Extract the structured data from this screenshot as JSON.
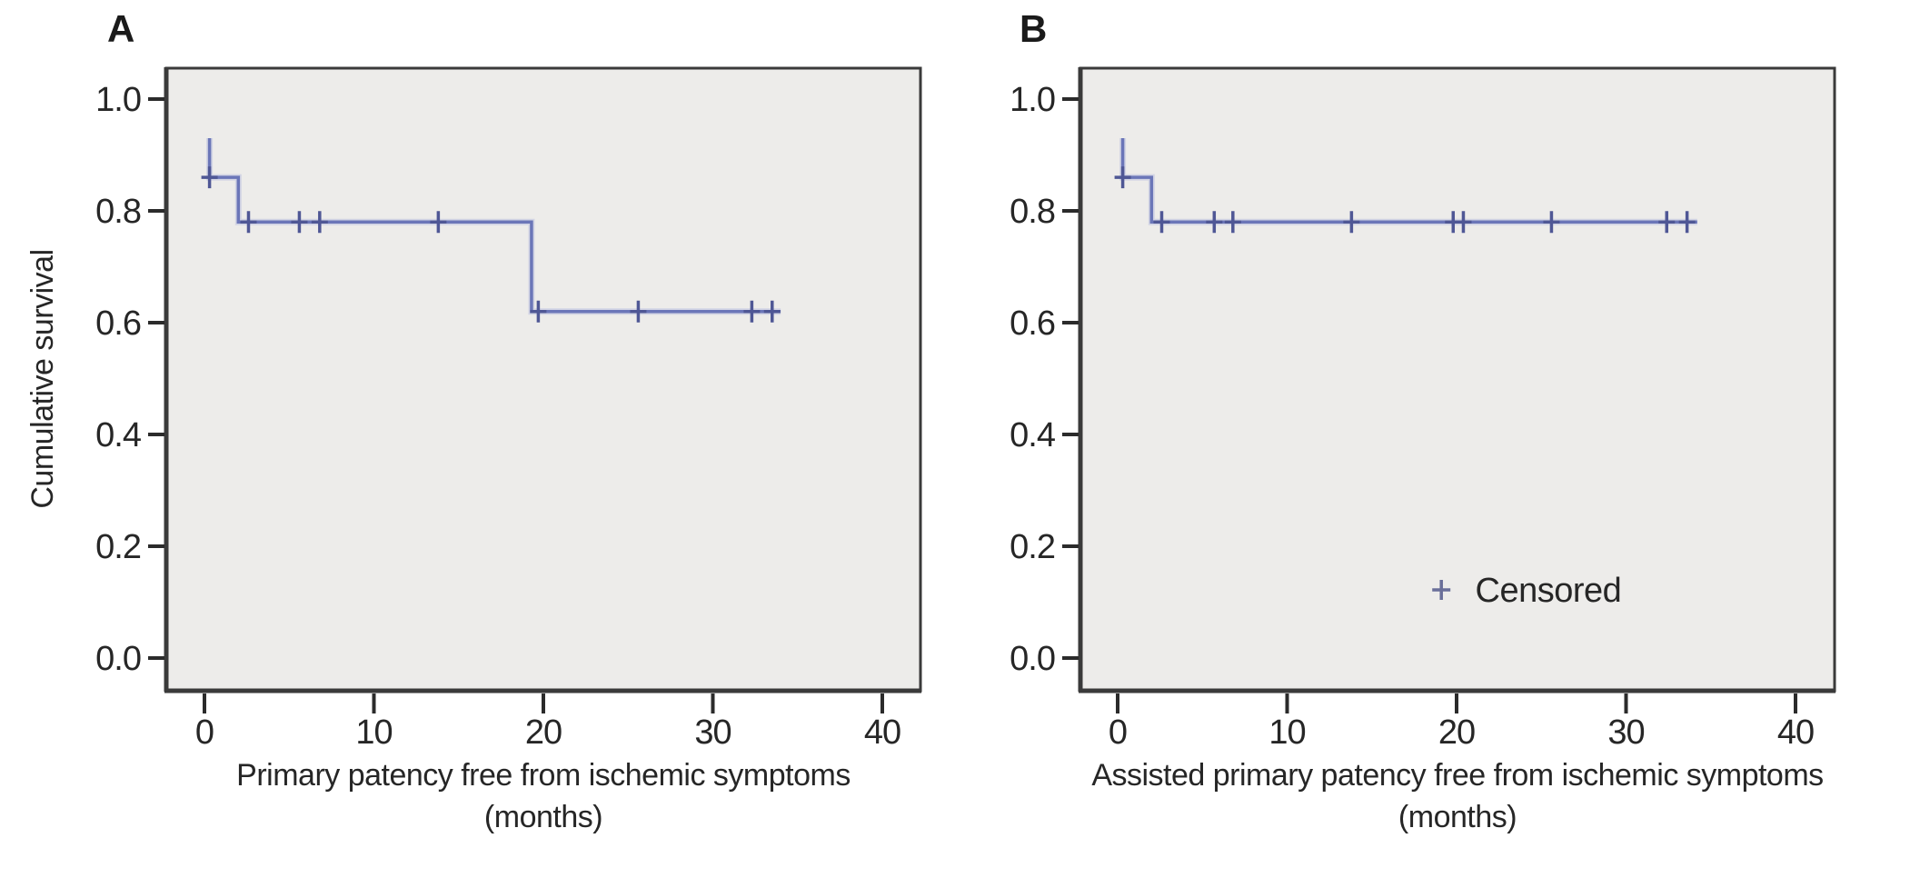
{
  "figure": {
    "panels": [
      {
        "label": "A",
        "y_axis_title": "Cumulative survival",
        "x_axis_title_line1": "Primary patency free from ischemic symptoms",
        "x_axis_title_line2": "(months)"
      },
      {
        "label": "B",
        "y_axis_title": "",
        "x_axis_title_line1": "Assisted primary patency free from ischemic symptoms",
        "x_axis_title_line2": "(months)"
      }
    ]
  },
  "colors": {
    "curve": "#6b76b8",
    "curve_halo": "#bcc1de",
    "censor": "#4f5795",
    "legend_plus": "#6a6f99",
    "frame": "#3a3a3a",
    "tick": "#2b2b2b",
    "plot_bg": "#edecea",
    "text": "#262626",
    "page_bg": "#ffffff"
  },
  "chart_data": [
    {
      "type": "line",
      "subtype": "kaplan_meier_step",
      "title": "",
      "xlabel": "Primary patency free from ischemic symptoms (months)",
      "ylabel": "Cumulative survival",
      "xlim": [
        -2.3,
        42.3
      ],
      "ylim": [
        -0.06,
        1.055
      ],
      "grid": false,
      "x_axis": {
        "ticks": [
          0,
          10,
          20,
          30,
          40
        ],
        "tick_labels": [
          "0",
          "10",
          "20",
          "30",
          "40"
        ]
      },
      "y_axis": {
        "ticks": [
          1.0,
          0.8,
          0.6,
          0.4,
          0.2,
          0.0
        ],
        "tick_labels": [
          "1.0",
          "0.8",
          "0.6",
          "0.4",
          "0.2",
          "0.0"
        ]
      },
      "series": [
        {
          "name": "primary-patency",
          "steps": [
            [
              0.3,
              0.93
            ],
            [
              0.3,
              0.86
            ],
            [
              2.0,
              0.86
            ],
            [
              2.0,
              0.78
            ],
            [
              19.3,
              0.78
            ],
            [
              19.3,
              0.62
            ],
            [
              34.0,
              0.62
            ]
          ],
          "censored": [
            [
              0.3,
              0.86
            ],
            [
              2.6,
              0.78
            ],
            [
              5.6,
              0.78
            ],
            [
              6.8,
              0.78
            ],
            [
              13.8,
              0.78
            ],
            [
              19.7,
              0.62
            ],
            [
              25.6,
              0.62
            ],
            [
              32.3,
              0.62
            ],
            [
              33.5,
              0.62
            ]
          ]
        }
      ],
      "legend": null
    },
    {
      "type": "line",
      "subtype": "kaplan_meier_step",
      "title": "",
      "xlabel": "Assisted primary patency free from ischemic symptoms (months)",
      "ylabel": "",
      "xlim": [
        -2.3,
        42.3
      ],
      "ylim": [
        -0.06,
        1.055
      ],
      "grid": false,
      "x_axis": {
        "ticks": [
          0,
          10,
          20,
          30,
          40
        ],
        "tick_labels": [
          "0",
          "10",
          "20",
          "30",
          "40"
        ]
      },
      "y_axis": {
        "ticks": [
          1.0,
          0.8,
          0.6,
          0.4,
          0.2,
          0.0
        ],
        "tick_labels": [
          "1.0",
          "0.8",
          "0.6",
          "0.4",
          "0.2",
          "0.0"
        ]
      },
      "series": [
        {
          "name": "assisted-primary-patency",
          "steps": [
            [
              0.3,
              0.93
            ],
            [
              0.3,
              0.86
            ],
            [
              2.0,
              0.86
            ],
            [
              2.0,
              0.78
            ],
            [
              34.2,
              0.78
            ]
          ],
          "censored": [
            [
              0.3,
              0.86
            ],
            [
              2.6,
              0.78
            ],
            [
              5.7,
              0.78
            ],
            [
              6.8,
              0.78
            ],
            [
              13.8,
              0.78
            ],
            [
              19.8,
              0.78
            ],
            [
              20.4,
              0.78
            ],
            [
              25.6,
              0.78
            ],
            [
              32.4,
              0.78
            ],
            [
              33.6,
              0.78
            ]
          ]
        }
      ],
      "legend": {
        "label": "Censored",
        "marker": "plus",
        "marker_data_xy": [
          19.1,
          0.122
        ],
        "label_data_x": 21.1
      }
    }
  ]
}
